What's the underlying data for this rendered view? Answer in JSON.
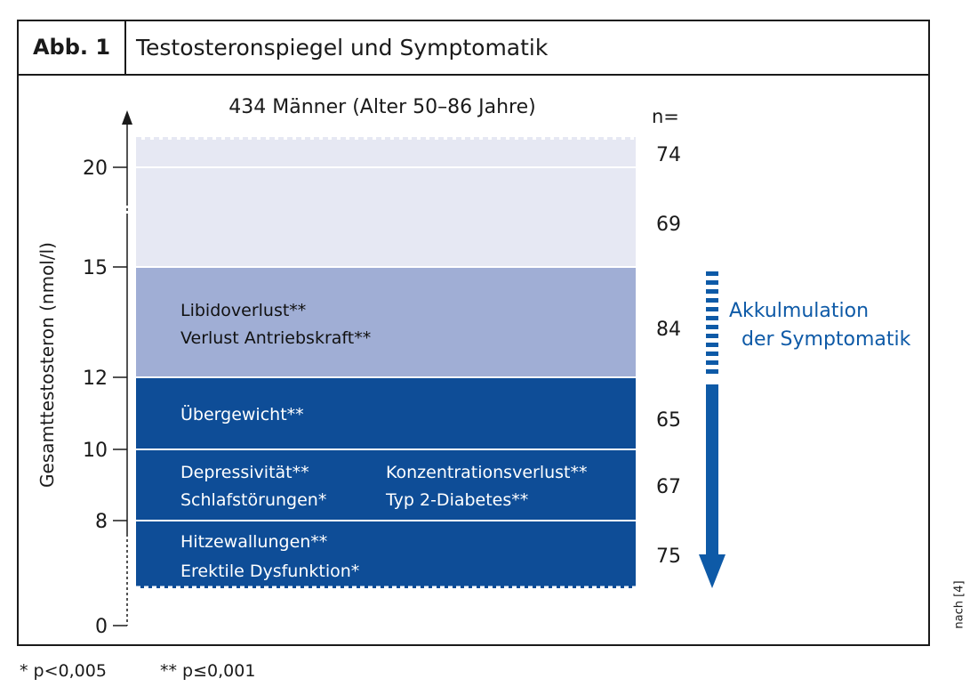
{
  "figure": {
    "label": "Abb. 1",
    "title": "Testosteronspiegel und Symptomatik",
    "source": "nach [4]"
  },
  "footnotes": [
    "* p<0,005",
    "** p≤0,001"
  ],
  "colors": {
    "light": "#e6e8f3",
    "medium": "#a0aed5",
    "dark": "#0e4d97",
    "arrow": "#0e5aa7",
    "axis": "#1a1a1a"
  },
  "chart_data": {
    "type": "bar",
    "subtitle": "434 Männer (Alter 50–86 Jahre)",
    "ylabel": "Gesamttestosteron (nmol/l)",
    "yticks": [
      0,
      8,
      10,
      12,
      15,
      20
    ],
    "n_header": "n=",
    "bands": [
      {
        "from": 20,
        "to": 21,
        "shade": "light",
        "n": 74,
        "symptoms": []
      },
      {
        "from": 15,
        "to": 20,
        "shade": "light",
        "n": 69,
        "symptoms": []
      },
      {
        "from": 12,
        "to": 15,
        "shade": "medium",
        "n": 84,
        "symptoms": [
          "Libidoverlust**",
          "Verlust Antriebskraft**"
        ]
      },
      {
        "from": 10,
        "to": 12,
        "shade": "dark",
        "n": 65,
        "symptoms": [
          "Übergewicht**"
        ]
      },
      {
        "from": 8,
        "to": 10,
        "shade": "dark",
        "n": 67,
        "symptoms": [
          "Depressivität**",
          "Schlafstörungen*",
          "Konzentrationsverlust**",
          "Typ 2-Diabetes**"
        ]
      },
      {
        "from": 0,
        "to": 8,
        "shade": "dark",
        "n": 75,
        "symptoms": [
          "Hitzewallungen**",
          "Erektile Dysfunktion*"
        ]
      }
    ],
    "arrow_label": [
      "Akkulmulation",
      "der Symptomatik"
    ]
  }
}
